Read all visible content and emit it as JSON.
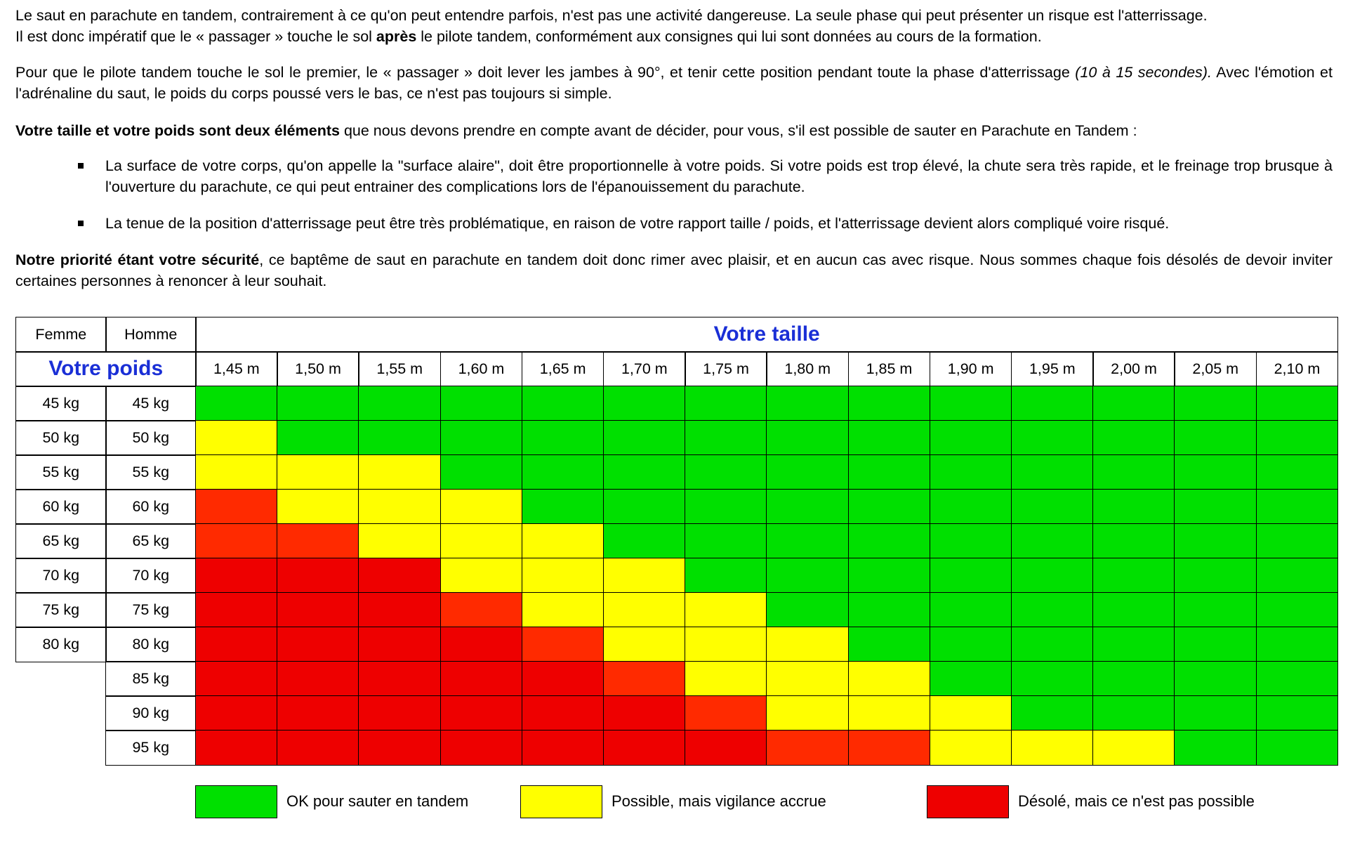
{
  "paragraphs": {
    "p1_a": "Le saut en parachute en tandem, contrairement à ce qu'on peut entendre parfois, n'est pas une activité dangereuse. La seule phase qui peut présenter un risque est l'atterrissage.",
    "p1_b_pre": "Il est donc impératif que le « passager » touche le sol ",
    "p1_b_bold": "après",
    "p1_b_post": " le pilote tandem, conformément aux consignes qui lui sont données au cours de la formation.",
    "p2_pre": "Pour que le pilote tandem touche le sol le premier, le « passager » doit lever les jambes à 90°, et tenir cette position pendant toute la phase d'atterrissage ",
    "p2_italic": "(10 à 15 secondes).",
    "p2_post": " Avec l'émotion et l'adrénaline du saut, le poids du corps poussé vers le bas, ce n'est pas toujours si simple.",
    "p3_bold": "Votre taille et votre poids sont deux éléments",
    "p3_post": " que nous devons prendre en compte avant de décider, pour vous, s'il est possible de sauter en Parachute en Tandem :",
    "bullet1": "La surface de votre corps, qu'on appelle la \"surface alaire\", doit être proportionnelle à votre poids. Si votre poids est trop élevé, la chute sera très rapide, et le freinage trop brusque à l'ouverture du parachute, ce qui peut entrainer des complications lors de l'épanouissement du parachute.",
    "bullet2": "La tenue de la position d'atterrissage peut être très problématique, en raison de votre rapport taille / poids, et l'atterrissage devient alors compliqué voire risqué.",
    "p4_bold": "Notre priorité étant votre sécurité",
    "p4_post": ", ce baptême de saut en parachute en tandem doit donc rimer avec plaisir, et en aucun cas avec risque. Nous sommes chaque fois désolés de devoir inviter certaines personnes à renoncer à leur souhait."
  },
  "table": {
    "femme_label": "Femme",
    "homme_label": "Homme",
    "taille_title": "Votre taille",
    "poids_title": "Votre poids",
    "heights": [
      "1,45 m",
      "1,50 m",
      "1,55 m",
      "1,60 m",
      "1,65 m",
      "1,70 m",
      "1,75 m",
      "1,80 m",
      "1,85 m",
      "1,90 m",
      "1,95 m",
      "2,00 m",
      "2,05 m",
      "2,10 m"
    ],
    "femme_weights": [
      "45 kg",
      "50 kg",
      "55 kg",
      "60 kg",
      "65 kg",
      "70 kg",
      "75 kg",
      "80 kg"
    ],
    "homme_weights": [
      "45 kg",
      "50 kg",
      "55 kg",
      "60 kg",
      "65 kg",
      "70 kg",
      "75 kg",
      "80 kg",
      "85 kg",
      "90 kg",
      "95 kg"
    ],
    "colors": {
      "G": "#00e000",
      "Y": "#ffff00",
      "O": "#ff2a00",
      "R": "#ee0000"
    },
    "rows": [
      "GGGGGGGGGGGGGG",
      "YGGGGGGGGGGGGG",
      "YYYGGGGGGGGGGG",
      "OYYYGGGGGGGGGG",
      "OOYYYGGGGGGGGG",
      "RRRYYYGGGGGGGG",
      "RRROYYYGGGGGGG",
      "RRRROYYYGGGGGG",
      "RRRRROYYYGGGGG",
      "RRRRRROYYYGGGG",
      "RRRRRRROOYYYGG"
    ]
  },
  "legend": [
    {
      "label": "OK pour sauter en tandem",
      "color": "#00e000"
    },
    {
      "label": "Possible, mais vigilance accrue",
      "color": "#ffff00"
    },
    {
      "label": "Désolé, mais ce n'est pas possible",
      "color": "#ee0000"
    }
  ]
}
